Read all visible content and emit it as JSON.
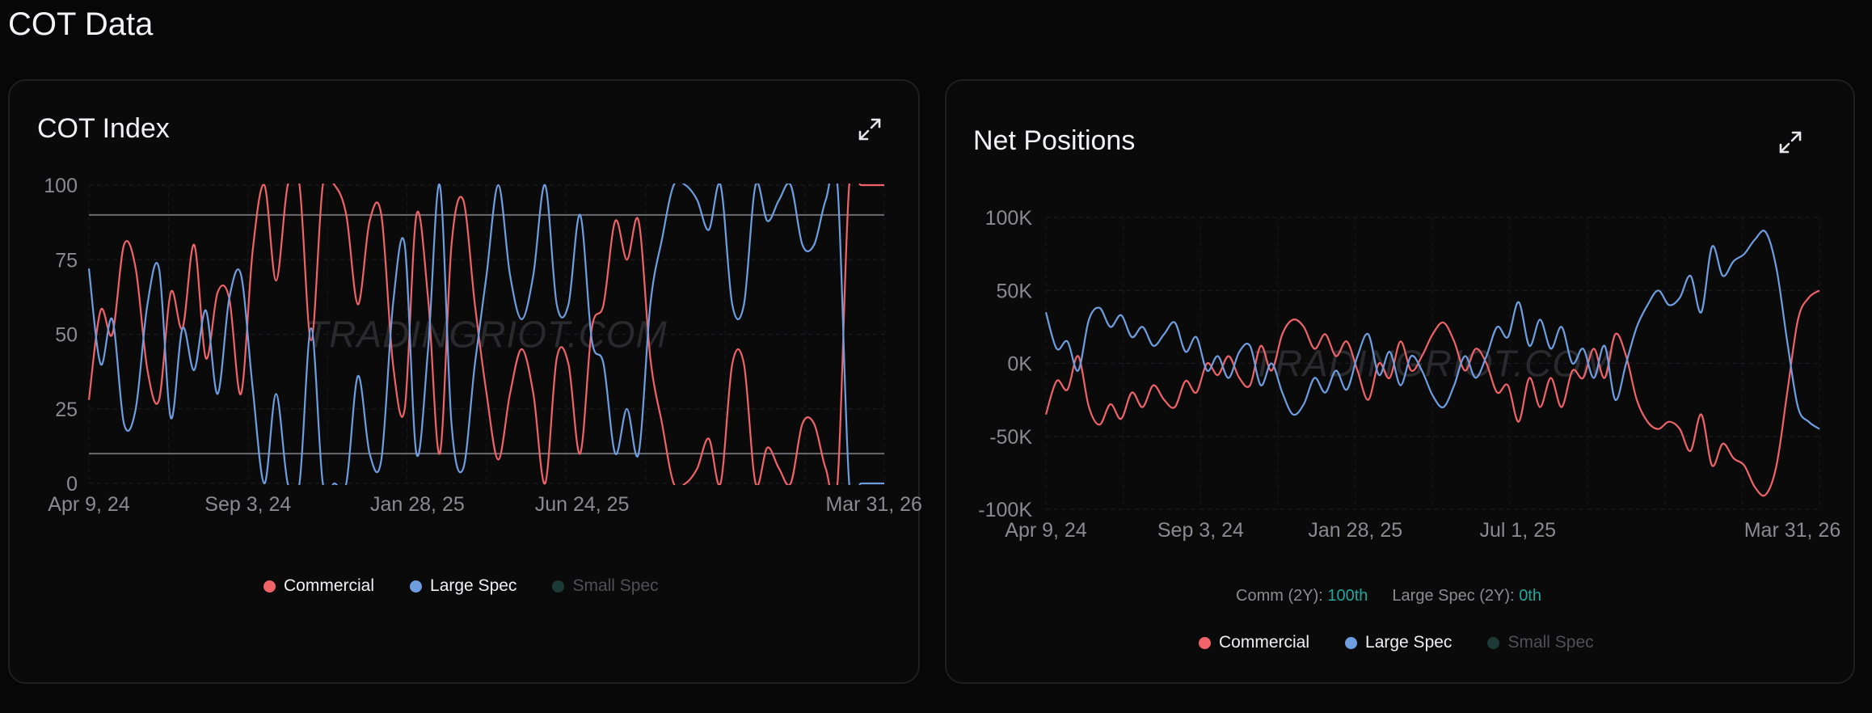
{
  "page": {
    "title": "COT Data"
  },
  "colors": {
    "commercial": "#f06368",
    "large_spec": "#6f9ee0",
    "small_spec": "#1c3a36",
    "accent": "#1fa89a"
  },
  "watermark": "TRADINGRIOT.COM",
  "cot_index": {
    "title": "COT Index",
    "expand_icon": "expand-icon",
    "legend": [
      "Commercial",
      "Large Spec",
      "Small Spec"
    ]
  },
  "net_positions": {
    "title": "Net Positions",
    "expand_icon": "expand-icon",
    "stats": {
      "comm_label": "Comm (2Y):",
      "comm_value": "100th",
      "spec_label": "Large Spec (2Y):",
      "spec_value": "0th"
    },
    "legend": [
      "Commercial",
      "Large Spec",
      "Small Spec"
    ]
  },
  "chart_data": [
    {
      "id": "cot-index",
      "type": "line",
      "title": "COT Index",
      "x_ticks": [
        "Apr 9, 24",
        "Sep 3, 24",
        "Jan 28, 25",
        "Jun 24, 25",
        "Mar 31, 26"
      ],
      "y_ticks": [
        "100",
        "75",
        "50",
        "25",
        "0"
      ],
      "ylim": [
        0,
        100
      ],
      "reference_lines": [
        90,
        10
      ],
      "series": [
        {
          "name": "Commercial",
          "values": [
            28,
            58,
            50,
            80,
            72,
            38,
            28,
            64,
            52,
            80,
            42,
            64,
            62,
            30,
            78,
            100,
            68,
            100,
            100,
            48,
            100,
            100,
            90,
            60,
            88,
            90,
            40,
            25,
            90,
            62,
            10,
            80,
            95,
            60,
            30,
            8,
            30,
            45,
            30,
            0,
            42,
            40,
            10,
            52,
            60,
            88,
            75,
            88,
            42,
            20,
            0,
            0,
            5,
            15,
            0,
            40,
            40,
            0,
            12,
            5,
            0,
            20,
            20,
            5,
            0,
            100,
            100,
            100,
            100
          ]
        },
        {
          "name": "Large Spec",
          "values": [
            72,
            40,
            55,
            20,
            25,
            60,
            72,
            22,
            52,
            38,
            58,
            30,
            62,
            70,
            32,
            0,
            30,
            0,
            0,
            52,
            0,
            0,
            0,
            36,
            10,
            8,
            60,
            80,
            10,
            45,
            100,
            20,
            5,
            40,
            70,
            100,
            70,
            55,
            70,
            100,
            60,
            60,
            90,
            48,
            40,
            10,
            25,
            10,
            60,
            82,
            100,
            100,
            95,
            85,
            100,
            60,
            60,
            100,
            88,
            95,
            100,
            80,
            80,
            95,
            100,
            0,
            0,
            0,
            0
          ]
        },
        {
          "name": "Small Spec",
          "values": []
        }
      ],
      "legend": [
        "Commercial",
        "Large Spec",
        "Small Spec"
      ]
    },
    {
      "id": "net-positions",
      "type": "line",
      "title": "Net Positions",
      "x_ticks": [
        "Apr 9, 24",
        "Sep 3, 24",
        "Jan 28, 25",
        "Jul 1, 25",
        "Mar 31, 26"
      ],
      "y_ticks": [
        "100K",
        "50K",
        "0K",
        "-50K",
        "-100K"
      ],
      "ylim": [
        -100000,
        100000
      ],
      "series": [
        {
          "name": "Commercial",
          "values": [
            -35000,
            -12000,
            -18000,
            5000,
            -30000,
            -42000,
            -28000,
            -38000,
            -20000,
            -30000,
            -15000,
            -25000,
            -30000,
            -12000,
            -20000,
            0,
            -8000,
            5000,
            -10000,
            -15000,
            12000,
            -5000,
            20000,
            30000,
            25000,
            10000,
            20000,
            5000,
            15000,
            -5000,
            -25000,
            0,
            -10000,
            15000,
            -5000,
            5000,
            20000,
            28000,
            15000,
            -5000,
            10000,
            0,
            -20000,
            -15000,
            -40000,
            -10000,
            -30000,
            -10000,
            -30000,
            -5000,
            -10000,
            10000,
            -10000,
            20000,
            5000,
            -25000,
            -40000,
            -45000,
            -40000,
            -45000,
            -60000,
            -35000,
            -70000,
            -55000,
            -65000,
            -70000,
            -85000,
            -90000,
            -70000,
            -20000,
            30000,
            45000,
            50000
          ]
        },
        {
          "name": "Large Spec",
          "values": [
            35000,
            10000,
            15000,
            -5000,
            30000,
            38000,
            25000,
            33000,
            18000,
            25000,
            12000,
            20000,
            28000,
            8000,
            18000,
            -5000,
            5000,
            -10000,
            8000,
            12000,
            -15000,
            0,
            -20000,
            -35000,
            -28000,
            -10000,
            -20000,
            -5000,
            -18000,
            5000,
            20000,
            -8000,
            8000,
            -15000,
            5000,
            -5000,
            -22000,
            -30000,
            -15000,
            5000,
            -10000,
            5000,
            25000,
            18000,
            42000,
            12000,
            30000,
            10000,
            25000,
            0,
            10000,
            -10000,
            12000,
            -25000,
            0,
            25000,
            40000,
            50000,
            40000,
            45000,
            60000,
            35000,
            80000,
            60000,
            70000,
            75000,
            85000,
            90000,
            65000,
            15000,
            -30000,
            -40000,
            -45000
          ]
        },
        {
          "name": "Small Spec",
          "values": []
        }
      ],
      "legend": [
        "Commercial",
        "Large Spec",
        "Small Spec"
      ]
    }
  ]
}
